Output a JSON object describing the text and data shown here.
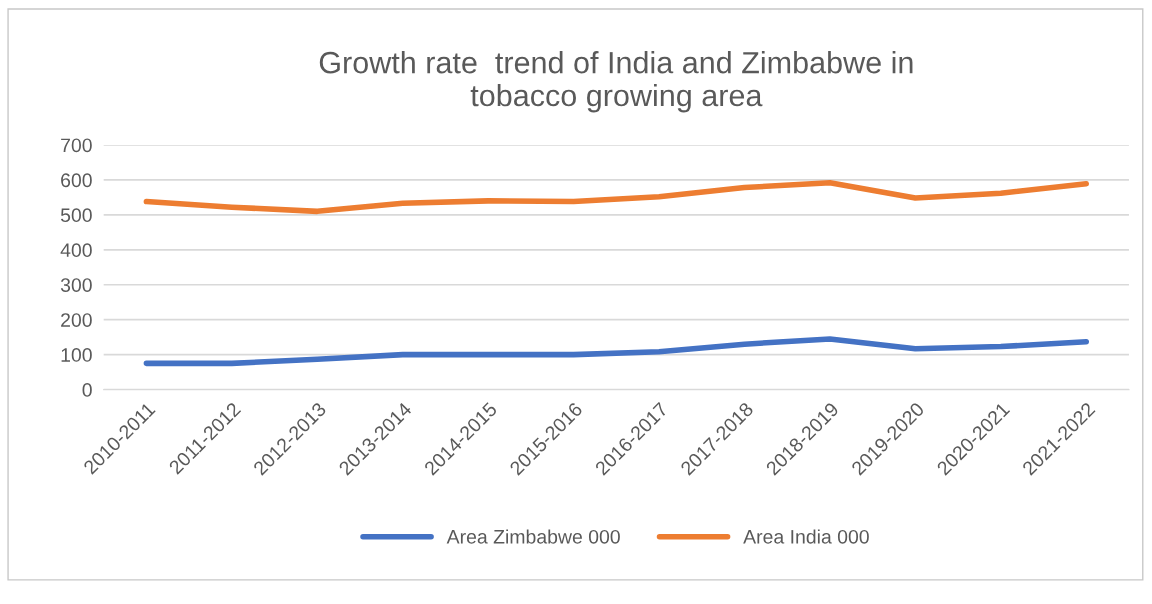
{
  "chart_data": {
    "type": "line",
    "title": "Growth rate  trend of India and Zimbabwe in\ntobacco growing area",
    "categories": [
      "2010-2011",
      "2011-2012",
      "2012-2013",
      "2013-2014",
      "2014-2015",
      "2015-2016",
      "2016-2017",
      "2017-2018",
      "2018-2019",
      "2019-2020",
      "2020-2021",
      "2021-2022"
    ],
    "series": [
      {
        "name": "Area Zimbabwe 000",
        "color": "#4472c4",
        "values": [
          75,
          75,
          87,
          100,
          100,
          100,
          108,
          130,
          145,
          117,
          123,
          137
        ]
      },
      {
        "name": "Area India 000",
        "color": "#ed7d31",
        "values": [
          538,
          522,
          510,
          533,
          540,
          538,
          552,
          578,
          592,
          548,
          562,
          589
        ]
      }
    ],
    "ylim": [
      0,
      700
    ],
    "yticks": [
      0,
      100,
      200,
      300,
      400,
      500,
      600,
      700
    ],
    "grid": "y",
    "legend": "bottom",
    "marker": "none",
    "line_style": "solid"
  }
}
